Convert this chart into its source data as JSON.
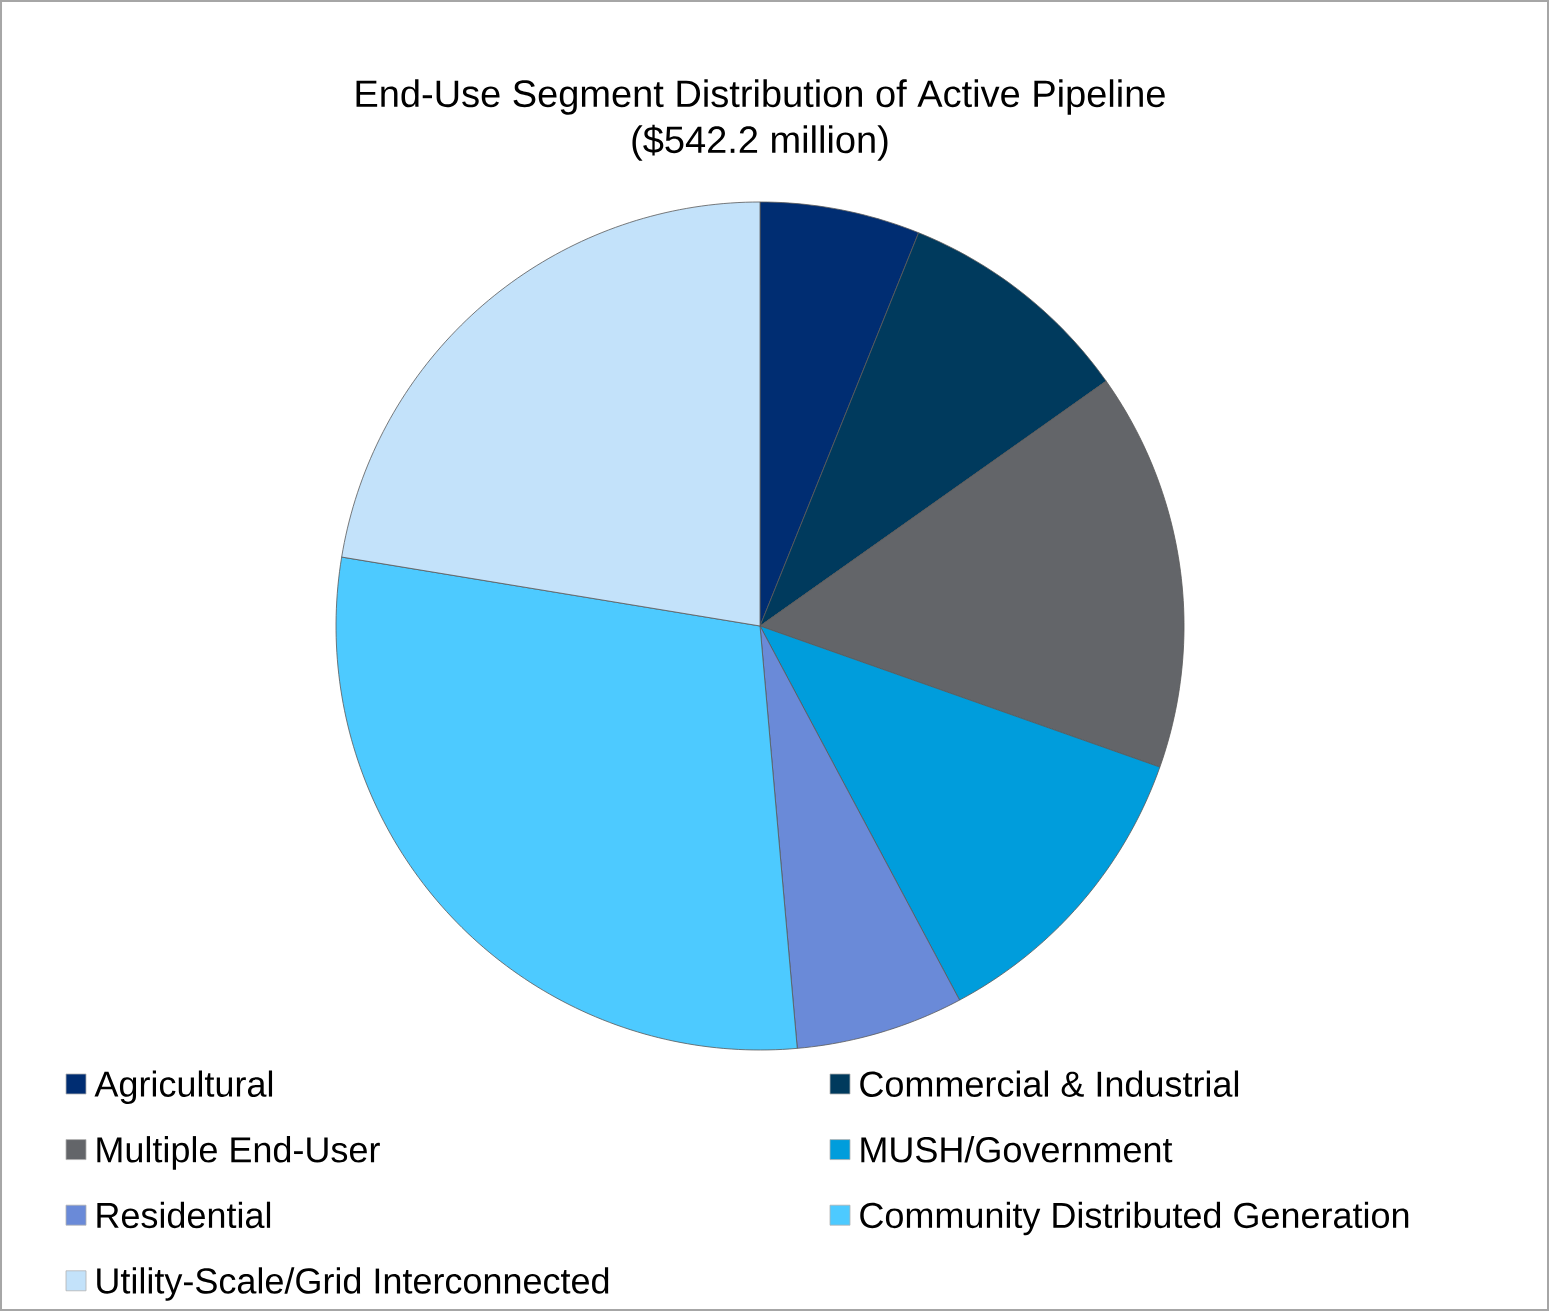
{
  "chart_data": {
    "type": "pie",
    "title": "End-Use Segment Distribution of Active Pipeline",
    "subtitle": "($542.2 million)",
    "categories": [
      "Agricultural",
      "Commercial & Industrial",
      "Multiple End-User",
      "MUSH/Government",
      "Residential",
      "Community Distributed Generation",
      "Utility-Scale/Grid Interconnected"
    ],
    "values": [
      6.1,
      9.1,
      15.2,
      11.8,
      6.4,
      29.0,
      22.4
    ],
    "colors": [
      "#002d72",
      "#003a5d",
      "#636569",
      "#009ddc",
      "#6a8ad8",
      "#4dcaff",
      "#c3e2fa"
    ],
    "legend": "bottom"
  }
}
